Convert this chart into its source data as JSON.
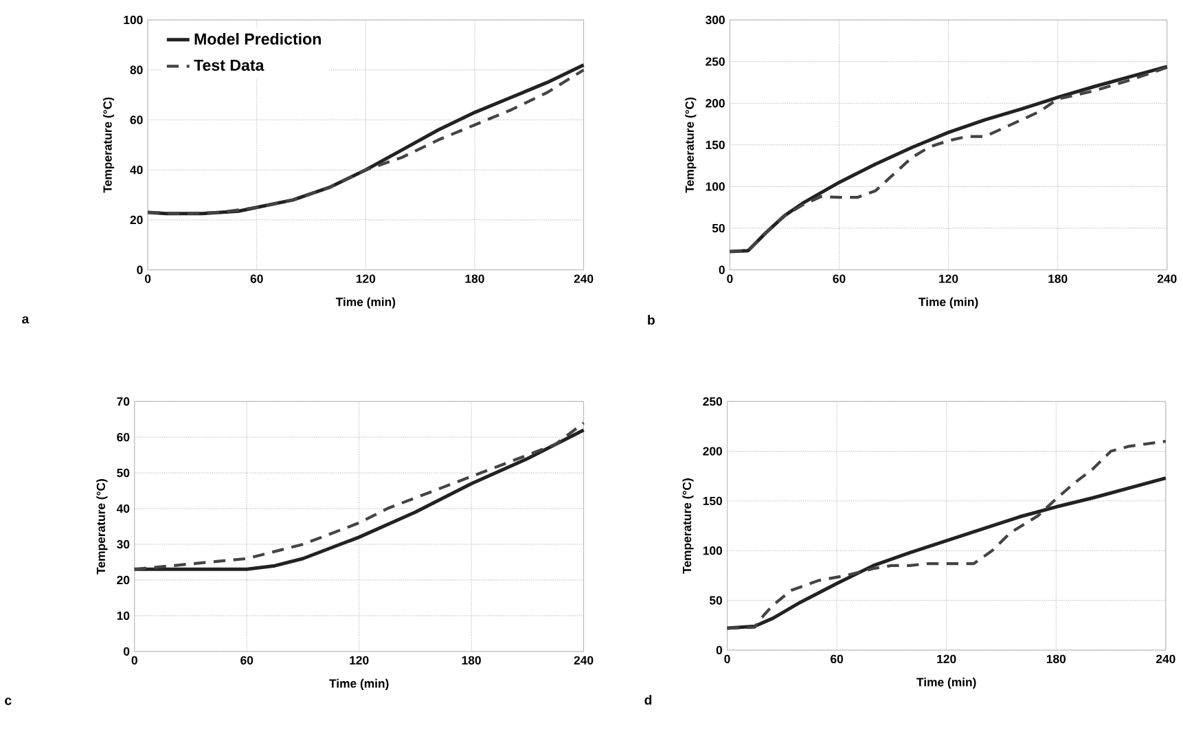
{
  "chart_data": [
    {
      "type": "line",
      "xlabel": "Time (min)",
      "ylabel": "Temperature (°C)",
      "annotations": [
        "a"
      ],
      "xlim": [
        0,
        240
      ],
      "ylim": [
        0,
        100
      ],
      "xticks": [
        0,
        60,
        120,
        180,
        240
      ],
      "yticks": [
        0,
        20,
        40,
        60,
        80,
        100
      ],
      "grid": true,
      "legend": "top left",
      "series": [
        {
          "name": "Model Prediction",
          "color": "#222222",
          "line_style": "solid",
          "x": [
            0,
            10,
            30,
            50,
            60,
            80,
            100,
            120,
            140,
            160,
            180,
            200,
            220,
            240
          ],
          "values": [
            23,
            22.5,
            22.5,
            23.5,
            25,
            28,
            33,
            40,
            48,
            56,
            63,
            69,
            75,
            82
          ]
        },
        {
          "name": "Test Data",
          "color": "#444444",
          "line_style": "dashed",
          "x": [
            0,
            20,
            40,
            60,
            80,
            100,
            120,
            140,
            160,
            180,
            200,
            220,
            240
          ],
          "values": [
            23,
            22.5,
            23,
            25,
            28,
            33,
            40,
            45,
            52,
            58,
            64,
            71,
            80
          ]
        }
      ]
    },
    {
      "type": "line",
      "xlabel": "Time (min)",
      "ylabel": "Temperature (°C)",
      "annotations": [
        "b"
      ],
      "xlim": [
        0,
        240
      ],
      "ylim": [
        0,
        300
      ],
      "xticks": [
        0,
        60,
        120,
        180,
        240
      ],
      "yticks": [
        0,
        50,
        100,
        150,
        200,
        250,
        300
      ],
      "grid": true,
      "series": [
        {
          "color": "#222222",
          "line_style": "solid",
          "x": [
            0,
            10,
            20,
            30,
            40,
            60,
            80,
            100,
            120,
            140,
            160,
            180,
            200,
            220,
            240
          ],
          "values": [
            22,
            23,
            45,
            65,
            80,
            105,
            127,
            147,
            165,
            180,
            193,
            207,
            220,
            232,
            244
          ]
        },
        {
          "color": "#444444",
          "line_style": "dashed",
          "x": [
            0,
            10,
            20,
            30,
            40,
            50,
            60,
            70,
            80,
            90,
            100,
            110,
            120,
            130,
            140,
            150,
            160,
            170,
            180,
            200,
            220,
            240
          ],
          "values": [
            22,
            23,
            45,
            65,
            78,
            88,
            87,
            87,
            95,
            115,
            135,
            148,
            155,
            160,
            160,
            170,
            180,
            190,
            205,
            215,
            228,
            243
          ]
        }
      ]
    },
    {
      "type": "line",
      "xlabel": "Time (min)",
      "ylabel": "Temperature (°C)",
      "annotations": [
        "c"
      ],
      "xlim": [
        0,
        240
      ],
      "ylim": [
        0,
        70
      ],
      "xticks": [
        0,
        60,
        120,
        180,
        240
      ],
      "yticks": [
        0,
        10,
        20,
        30,
        40,
        50,
        60,
        70
      ],
      "grid": true,
      "series": [
        {
          "color": "#222222",
          "line_style": "solid",
          "x": [
            0,
            30,
            60,
            75,
            90,
            105,
            120,
            150,
            180,
            210,
            240
          ],
          "values": [
            23,
            23,
            23,
            24,
            26,
            29,
            32,
            39,
            47,
            54,
            62
          ]
        },
        {
          "color": "#444444",
          "line_style": "dashed",
          "x": [
            0,
            20,
            40,
            60,
            75,
            90,
            105,
            120,
            135,
            150,
            165,
            180,
            195,
            210,
            225,
            240
          ],
          "values": [
            23,
            24,
            25,
            26,
            28,
            30,
            33,
            36,
            40,
            43,
            46,
            49,
            52,
            55,
            58,
            64
          ]
        }
      ]
    },
    {
      "type": "line",
      "xlabel": "Time (min)",
      "ylabel": "Temperature (°C)",
      "annotations": [
        "d"
      ],
      "xlim": [
        0,
        240
      ],
      "ylim": [
        0,
        250
      ],
      "xticks": [
        0,
        60,
        120,
        180,
        240
      ],
      "yticks": [
        0,
        50,
        100,
        150,
        200,
        250
      ],
      "grid": true,
      "series": [
        {
          "color": "#222222",
          "line_style": "solid",
          "x": [
            0,
            15,
            25,
            40,
            60,
            80,
            100,
            120,
            140,
            160,
            180,
            200,
            220,
            240
          ],
          "values": [
            22,
            24,
            32,
            48,
            67,
            85,
            98,
            110,
            122,
            134,
            144,
            153,
            163,
            173
          ]
        },
        {
          "color": "#444444",
          "line_style": "dashed",
          "x": [
            0,
            15,
            20,
            25,
            35,
            50,
            65,
            80,
            90,
            100,
            110,
            125,
            135,
            145,
            155,
            170,
            180,
            190,
            200,
            210,
            220,
            240
          ],
          "values": [
            22,
            23,
            35,
            45,
            60,
            70,
            75,
            82,
            85,
            85,
            87,
            87,
            87,
            100,
            118,
            135,
            152,
            168,
            182,
            200,
            205,
            210
          ]
        }
      ]
    }
  ]
}
